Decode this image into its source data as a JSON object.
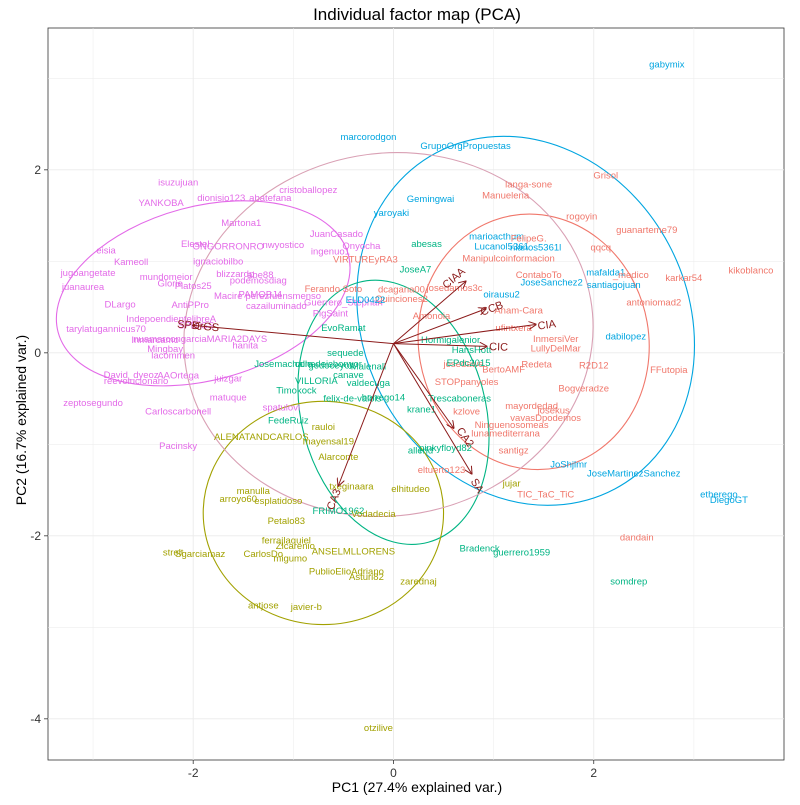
{
  "chart_data": {
    "type": "scatter",
    "title": "Individual factor map (PCA)",
    "xlabel": "PC1 (27.4% explained var.)",
    "ylabel": "PC2 (16.7% explained var.)",
    "xlim": [
      -3.45,
      3.9
    ],
    "ylim": [
      -4.45,
      3.55
    ],
    "x_ticks": [
      -2,
      0,
      2
    ],
    "y_ticks": [
      -4,
      -2,
      0,
      2
    ],
    "grid": true,
    "colors": {
      "magenta": "#e36ae8",
      "salmon": "#f0776b",
      "blue": "#00a5e0",
      "green": "#00b483",
      "olive": "#a2a100",
      "arrow": "#8b1a1a",
      "grid": "#ebebeb",
      "ellipse_extra": "#d9a0b4"
    },
    "points": [
      {
        "label": "gabymix",
        "x": 2.73,
        "y": 3.15,
        "c": "blue"
      },
      {
        "label": "marcorodgon",
        "x": -0.25,
        "y": 2.36,
        "c": "blue"
      },
      {
        "label": "GrupoOrgPropuestas",
        "x": 0.72,
        "y": 2.26,
        "c": "blue"
      },
      {
        "label": "Gemingwai",
        "x": 0.37,
        "y": 1.68,
        "c": "blue"
      },
      {
        "label": "yaroyaki",
        "x": -0.02,
        "y": 1.53,
        "c": "blue"
      },
      {
        "label": "marioacthum",
        "x": 1.03,
        "y": 1.27,
        "c": "blue"
      },
      {
        "label": "Lucanol5361",
        "x": 1.08,
        "y": 1.16,
        "c": "blue"
      },
      {
        "label": "nianos5361l",
        "x": 1.42,
        "y": 1.15,
        "c": "blue"
      },
      {
        "label": "JoseA7",
        "x": 0.22,
        "y": 0.91,
        "c": "green"
      },
      {
        "label": "abesas",
        "x": 0.33,
        "y": 1.19,
        "c": "green"
      },
      {
        "label": "JoseSanchez2",
        "x": 1.58,
        "y": 0.77,
        "c": "blue"
      },
      {
        "label": "mafalda1",
        "x": 2.12,
        "y": 0.88,
        "c": "blue"
      },
      {
        "label": "santiagojuan",
        "x": 2.2,
        "y": 0.74,
        "c": "blue"
      },
      {
        "label": "oirausu2",
        "x": 1.08,
        "y": 0.64,
        "c": "blue"
      },
      {
        "label": "dabilopez",
        "x": 2.32,
        "y": 0.18,
        "c": "blue"
      },
      {
        "label": "JoShjlmr",
        "x": 1.75,
        "y": -1.22,
        "c": "blue"
      },
      {
        "label": "JoseMartinezSanchez",
        "x": 2.4,
        "y": -1.32,
        "c": "blue"
      },
      {
        "label": "etherego",
        "x": 3.25,
        "y": -1.55,
        "c": "blue"
      },
      {
        "label": "DiegoGT",
        "x": 3.35,
        "y": -1.61,
        "c": "blue"
      },
      {
        "label": "Grisol",
        "x": 2.12,
        "y": 1.94,
        "c": "salmon"
      },
      {
        "label": "langa-sone",
        "x": 1.35,
        "y": 1.84,
        "c": "salmon"
      },
      {
        "label": "Manuelena",
        "x": 1.12,
        "y": 1.72,
        "c": "salmon"
      },
      {
        "label": "rogoyin",
        "x": 1.88,
        "y": 1.49,
        "c": "salmon"
      },
      {
        "label": "guanarteme79",
        "x": 2.53,
        "y": 1.34,
        "c": "salmon"
      },
      {
        "label": "FelipeG.",
        "x": 1.35,
        "y": 1.25,
        "c": "salmon"
      },
      {
        "label": "qqcq",
        "x": 2.07,
        "y": 1.15,
        "c": "salmon"
      },
      {
        "label": "kikoblanco",
        "x": 3.57,
        "y": 0.9,
        "c": "salmon"
      },
      {
        "label": "_medico",
        "x": 2.37,
        "y": 0.85,
        "c": "salmon"
      },
      {
        "label": "karkar54",
        "x": 2.9,
        "y": 0.82,
        "c": "salmon"
      },
      {
        "label": "antoniomad2",
        "x": 2.6,
        "y": 0.55,
        "c": "salmon"
      },
      {
        "label": "FFutopia",
        "x": 2.75,
        "y": -0.19,
        "c": "salmon"
      },
      {
        "label": "R2D12",
        "x": 2.0,
        "y": -0.14,
        "c": "salmon"
      },
      {
        "label": "Bogveradze",
        "x": 1.9,
        "y": -0.39,
        "c": "salmon"
      },
      {
        "label": "InmersiVer",
        "x": 1.62,
        "y": 0.15,
        "c": "salmon"
      },
      {
        "label": "LullyDelMar",
        "x": 1.62,
        "y": 0.05,
        "c": "salmon"
      },
      {
        "label": "Anam-Cara",
        "x": 1.25,
        "y": 0.46,
        "c": "salmon"
      },
      {
        "label": "ufintxera",
        "x": 1.2,
        "y": 0.27,
        "c": "salmon"
      },
      {
        "label": "ContaboTo",
        "x": 1.45,
        "y": 0.85,
        "c": "salmon"
      },
      {
        "label": "Manipulcoinformacion",
        "x": 1.15,
        "y": 1.03,
        "c": "salmon"
      },
      {
        "label": "Redeta",
        "x": 1.43,
        "y": -0.13,
        "c": "salmon"
      },
      {
        "label": "BertoAMF",
        "x": 1.1,
        "y": -0.18,
        "c": "salmon"
      },
      {
        "label": "STOPpanyoles",
        "x": 0.73,
        "y": -0.32,
        "c": "salmon"
      },
      {
        "label": "mayordedad",
        "x": 1.38,
        "y": -0.58,
        "c": "salmon"
      },
      {
        "label": "josekus",
        "x": 1.6,
        "y": -0.63,
        "c": "salmon"
      },
      {
        "label": "vavasDpodemos",
        "x": 1.52,
        "y": -0.71,
        "c": "salmon"
      },
      {
        "label": "Ninguenosomeas",
        "x": 1.18,
        "y": -0.79,
        "c": "salmon"
      },
      {
        "label": "lunamediterrana",
        "x": 1.12,
        "y": -0.88,
        "c": "salmon"
      },
      {
        "label": "santigz",
        "x": 1.2,
        "y": -1.07,
        "c": "salmon"
      },
      {
        "label": "eltuerto123",
        "x": 0.48,
        "y": -1.28,
        "c": "salmon"
      },
      {
        "label": "TIC_TaC_TiC",
        "x": 1.52,
        "y": -1.55,
        "c": "salmon"
      },
      {
        "label": "dandain",
        "x": 2.43,
        "y": -2.02,
        "c": "salmon"
      },
      {
        "label": "kzlove",
        "x": 0.73,
        "y": -0.64,
        "c": "salmon"
      },
      {
        "label": "Ferando Soto",
        "x": -0.6,
        "y": 0.7,
        "c": "salmon"
      },
      {
        "label": "VIRTUREyRA3",
        "x": -0.28,
        "y": 1.02,
        "c": "salmon"
      },
      {
        "label": "dcagana00",
        "x": 0.08,
        "y": 0.69,
        "c": "salmon"
      },
      {
        "label": "Quinciones2",
        "x": 0.08,
        "y": 0.59,
        "c": "salmon"
      },
      {
        "label": "Amonoia",
        "x": 0.38,
        "y": 0.4,
        "c": "salmon"
      },
      {
        "label": "josedamos3c",
        "x": 0.61,
        "y": 0.71,
        "c": "salmon"
      },
      {
        "label": "josedawe",
        "x": 0.7,
        "y": -0.12,
        "c": "salmon"
      },
      {
        "label": "isuzujuan",
        "x": -2.15,
        "y": 1.86,
        "c": "magenta"
      },
      {
        "label": "dionisio123",
        "x": -1.72,
        "y": 1.69,
        "c": "magenta"
      },
      {
        "label": "abatefana",
        "x": -1.23,
        "y": 1.69,
        "c": "magenta"
      },
      {
        "label": "cristoballopez",
        "x": -0.85,
        "y": 1.78,
        "c": "magenta"
      },
      {
        "label": "YANKOBA",
        "x": -2.32,
        "y": 1.64,
        "c": "magenta"
      },
      {
        "label": "Martona1",
        "x": -1.52,
        "y": 1.42,
        "c": "magenta"
      },
      {
        "label": "JuanCasado",
        "x": -0.57,
        "y": 1.3,
        "c": "magenta"
      },
      {
        "label": "Elestel",
        "x": -1.98,
        "y": 1.19,
        "c": "magenta"
      },
      {
        "label": "ONGORRONRO",
        "x": -1.65,
        "y": 1.16,
        "c": "magenta"
      },
      {
        "label": "nwyostico",
        "x": -1.1,
        "y": 1.18,
        "c": "magenta"
      },
      {
        "label": "Onyocha",
        "x": -0.32,
        "y": 1.17,
        "c": "magenta"
      },
      {
        "label": "ingenuo1",
        "x": -0.63,
        "y": 1.11,
        "c": "magenta"
      },
      {
        "label": "eisia",
        "x": -2.87,
        "y": 1.12,
        "c": "magenta"
      },
      {
        "label": "Kameoll",
        "x": -2.62,
        "y": 0.99,
        "c": "magenta"
      },
      {
        "label": "ignaciobilbo",
        "x": -1.75,
        "y": 1.0,
        "c": "magenta"
      },
      {
        "label": "jugoangetate",
        "x": -3.05,
        "y": 0.87,
        "c": "magenta"
      },
      {
        "label": "mundomeior",
        "x": -2.27,
        "y": 0.83,
        "c": "magenta"
      },
      {
        "label": "blizzardp",
        "x": -1.58,
        "y": 0.86,
        "c": "magenta"
      },
      {
        "label": "abe88",
        "x": -1.33,
        "y": 0.85,
        "c": "magenta"
      },
      {
        "label": "Glorie",
        "x": -2.23,
        "y": 0.76,
        "c": "magenta"
      },
      {
        "label": "Platos25",
        "x": -2.0,
        "y": 0.73,
        "c": "magenta"
      },
      {
        "label": "juanaurea",
        "x": -3.1,
        "y": 0.72,
        "c": "magenta"
      },
      {
        "label": "podemosdiag",
        "x": -1.35,
        "y": 0.79,
        "c": "magenta"
      },
      {
        "label": "Macire",
        "x": -1.65,
        "y": 0.62,
        "c": "magenta"
      },
      {
        "label": "AntiPPro",
        "x": -2.03,
        "y": 0.52,
        "c": "magenta"
      },
      {
        "label": "DLargo",
        "x": -2.73,
        "y": 0.53,
        "c": "magenta"
      },
      {
        "label": "cazailuminado",
        "x": -1.17,
        "y": 0.51,
        "c": "magenta"
      },
      {
        "label": "PAMOBJ4",
        "x": -1.33,
        "y": 0.64,
        "c": "magenta"
      },
      {
        "label": "perezfuensmenso",
        "x": -1.1,
        "y": 0.62,
        "c": "magenta"
      },
      {
        "label": "PigSaint",
        "x": -0.63,
        "y": 0.43,
        "c": "magenta"
      },
      {
        "label": "IndepoendientelibreA",
        "x": -2.22,
        "y": 0.37,
        "c": "magenta"
      },
      {
        "label": "SPDrGS",
        "x": -1.97,
        "y": 0.3,
        "c": "magenta"
      },
      {
        "label": "tarylatugannicus70",
        "x": -2.87,
        "y": 0.26,
        "c": "magenta"
      },
      {
        "label": "Inmarcamo",
        "x": -2.38,
        "y": 0.14,
        "c": "magenta"
      },
      {
        "label": "nuamarcongarciaMARIA2DAYS",
        "x": -1.93,
        "y": 0.15,
        "c": "magenta"
      },
      {
        "label": "Mingbay",
        "x": -2.28,
        "y": 0.04,
        "c": "magenta"
      },
      {
        "label": "lacommen",
        "x": -2.2,
        "y": -0.03,
        "c": "magenta"
      },
      {
        "label": "hanita",
        "x": -1.48,
        "y": 0.08,
        "c": "magenta"
      },
      {
        "label": "David_dyeoz",
        "x": -2.62,
        "y": -0.24,
        "c": "magenta"
      },
      {
        "label": "reevolucionario",
        "x": -2.57,
        "y": -0.31,
        "c": "magenta"
      },
      {
        "label": "AAOrtega",
        "x": -2.15,
        "y": -0.25,
        "c": "magenta"
      },
      {
        "label": "juizgar",
        "x": -1.65,
        "y": -0.28,
        "c": "magenta"
      },
      {
        "label": "zeptosegundo",
        "x": -3.0,
        "y": -0.55,
        "c": "magenta"
      },
      {
        "label": "Carloscarbonell",
        "x": -2.15,
        "y": -0.64,
        "c": "magenta"
      },
      {
        "label": "matuque",
        "x": -1.65,
        "y": -0.49,
        "c": "magenta"
      },
      {
        "label": "spatulovi",
        "x": -1.12,
        "y": -0.6,
        "c": "magenta"
      },
      {
        "label": "Pacinsky",
        "x": -2.15,
        "y": -1.02,
        "c": "magenta"
      },
      {
        "label": "Guerrero_Stephan",
        "x": -0.5,
        "y": 0.55,
        "c": "magenta"
      },
      {
        "label": "ELD0422",
        "x": -0.28,
        "y": 0.58,
        "c": "blue"
      },
      {
        "label": "EvoRamat",
        "x": -0.5,
        "y": 0.27,
        "c": "green"
      },
      {
        "label": "Josemachallo",
        "x": -1.1,
        "y": -0.12,
        "c": "green"
      },
      {
        "label": "conedeisbonyor",
        "x": -0.65,
        "y": -0.12,
        "c": "green"
      },
      {
        "label": "sequede",
        "x": -0.48,
        "y": 0.0,
        "c": "green"
      },
      {
        "label": "gedoceyok",
        "x": -0.62,
        "y": -0.14,
        "c": "green"
      },
      {
        "label": "Malenall",
        "x": -0.25,
        "y": -0.15,
        "c": "green"
      },
      {
        "label": "canave",
        "x": -0.45,
        "y": -0.24,
        "c": "green"
      },
      {
        "label": "VILLORIA",
        "x": -0.77,
        "y": -0.31,
        "c": "green"
      },
      {
        "label": "valdecuga",
        "x": -0.25,
        "y": -0.33,
        "c": "green"
      },
      {
        "label": "Timokock",
        "x": -0.97,
        "y": -0.41,
        "c": "green"
      },
      {
        "label": "felix-de-valois",
        "x": -0.41,
        "y": -0.5,
        "c": "green"
      },
      {
        "label": "borrego14",
        "x": -0.1,
        "y": -0.49,
        "c": "green"
      },
      {
        "label": "Trescaboneras",
        "x": 0.66,
        "y": -0.5,
        "c": "green"
      },
      {
        "label": "FedeRuiz",
        "x": -1.05,
        "y": -0.74,
        "c": "green"
      },
      {
        "label": "krane1",
        "x": 0.28,
        "y": -0.62,
        "c": "green"
      },
      {
        "label": "HansHott",
        "x": 0.78,
        "y": 0.03,
        "c": "green"
      },
      {
        "label": "EPdc2015",
        "x": 0.75,
        "y": -0.11,
        "c": "green"
      },
      {
        "label": "Hormigalenior",
        "x": 0.57,
        "y": 0.14,
        "c": "green"
      },
      {
        "label": "pinkyfloyd82",
        "x": 0.52,
        "y": -1.04,
        "c": "green"
      },
      {
        "label": "allerid",
        "x": 0.27,
        "y": -1.07,
        "c": "green"
      },
      {
        "label": "Bradenck",
        "x": 0.86,
        "y": -2.14,
        "c": "green"
      },
      {
        "label": "guerrero1959",
        "x": 1.28,
        "y": -2.18,
        "c": "green"
      },
      {
        "label": "somdrep",
        "x": 2.35,
        "y": -2.5,
        "c": "green"
      },
      {
        "label": "FRIMO1962",
        "x": -0.55,
        "y": -1.73,
        "c": "green"
      },
      {
        "label": "ALENATANDCARLOS",
        "x": -1.32,
        "y": -0.92,
        "c": "olive"
      },
      {
        "label": "mayensal19",
        "x": -0.65,
        "y": -0.97,
        "c": "olive"
      },
      {
        "label": "Alarconte",
        "x": -0.55,
        "y": -1.14,
        "c": "olive"
      },
      {
        "label": "rauloi",
        "x": -0.7,
        "y": -0.81,
        "c": "olive"
      },
      {
        "label": "txeginaara",
        "x": -0.42,
        "y": -1.46,
        "c": "olive"
      },
      {
        "label": "elhitudeo",
        "x": 0.17,
        "y": -1.49,
        "c": "olive"
      },
      {
        "label": "jujar",
        "x": 1.18,
        "y": -1.43,
        "c": "olive"
      },
      {
        "label": "manulla",
        "x": -1.4,
        "y": -1.51,
        "c": "olive"
      },
      {
        "label": "arroyo60",
        "x": -1.55,
        "y": -1.6,
        "c": "olive"
      },
      {
        "label": "esplatidoso",
        "x": -1.15,
        "y": -1.62,
        "c": "olive"
      },
      {
        "label": "Petalo83",
        "x": -1.07,
        "y": -1.84,
        "c": "olive"
      },
      {
        "label": "ferrajlaquiel",
        "x": -1.07,
        "y": -2.05,
        "c": "olive"
      },
      {
        "label": "Zlcarenio",
        "x": -0.98,
        "y": -2.11,
        "c": "olive"
      },
      {
        "label": "ANSELMLLORENS",
        "x": -0.4,
        "y": -2.17,
        "c": "olive"
      },
      {
        "label": "Vodadecia",
        "x": -0.2,
        "y": -1.76,
        "c": "olive"
      },
      {
        "label": "strelt",
        "x": -2.2,
        "y": -2.18,
        "c": "olive"
      },
      {
        "label": "Sgarciamaz",
        "x": -1.93,
        "y": -2.2,
        "c": "olive"
      },
      {
        "label": "CarlosDo",
        "x": -1.3,
        "y": -2.2,
        "c": "olive"
      },
      {
        "label": "migumo",
        "x": -1.03,
        "y": -2.25,
        "c": "olive"
      },
      {
        "label": "PublioElioAdriano",
        "x": -0.47,
        "y": -2.39,
        "c": "olive"
      },
      {
        "label": "Asturi82",
        "x": -0.27,
        "y": -2.45,
        "c": "olive"
      },
      {
        "label": "zarednaj",
        "x": 0.25,
        "y": -2.5,
        "c": "olive"
      },
      {
        "label": "antjose",
        "x": -1.3,
        "y": -2.76,
        "c": "olive"
      },
      {
        "label": "javier-b",
        "x": -0.87,
        "y": -2.78,
        "c": "olive"
      },
      {
        "label": "otzilive",
        "x": -0.15,
        "y": -4.1,
        "c": "olive"
      }
    ],
    "ellipses": [
      {
        "name": "blue",
        "cx": 1.32,
        "cy": 0.35,
        "rx": 1.62,
        "ry": 2.08,
        "rot": -28,
        "c": "blue"
      },
      {
        "name": "salmon",
        "cx": 1.4,
        "cy": 0.12,
        "rx": 1.15,
        "ry": 1.4,
        "rot": -10,
        "c": "salmon"
      },
      {
        "name": "magenta",
        "cx": -1.9,
        "cy": 0.65,
        "rx": 1.5,
        "ry": 0.95,
        "rot": -15,
        "c": "magenta"
      },
      {
        "name": "green",
        "cx": 0.0,
        "cy": -0.65,
        "rx": 0.92,
        "ry": 1.47,
        "rot": -15,
        "c": "green"
      },
      {
        "name": "olive",
        "cx": -0.7,
        "cy": -1.75,
        "rx": 1.2,
        "ry": 1.22,
        "rot": 0,
        "c": "olive"
      },
      {
        "name": "extra",
        "cx": -0.05,
        "cy": 0.2,
        "rx": 2.05,
        "ry": 1.98,
        "rot": -10,
        "c": "ellipse_extra"
      }
    ],
    "arrow_origin": [
      0.0,
      0.1
    ],
    "arrows": [
      {
        "label": "SPDrGS",
        "x": -2.0,
        "y": 0.3,
        "lx": -1.95,
        "ly": 0.3
      },
      {
        "label": "CIA",
        "x": 1.42,
        "y": 0.31,
        "lx": 1.53,
        "ly": 0.31
      },
      {
        "label": "CCB",
        "x": 0.92,
        "y": 0.48,
        "lx": 0.98,
        "ly": 0.49
      },
      {
        "label": "CIC",
        "x": 0.93,
        "y": 0.07,
        "lx": 1.05,
        "ly": 0.07
      },
      {
        "label": "CIAA",
        "x": 0.72,
        "y": 0.78,
        "lx": 0.6,
        "ly": 0.82
      },
      {
        "label": "CA3",
        "x": -0.55,
        "y": -1.45,
        "lx": -0.6,
        "ly": -1.6
      },
      {
        "label": "CA2",
        "x": 0.6,
        "y": -0.82,
        "lx": 0.72,
        "ly": -0.92
      },
      {
        "label": "SA",
        "x": 0.78,
        "y": -1.32,
        "lx": 0.84,
        "ly": -1.45
      }
    ]
  }
}
